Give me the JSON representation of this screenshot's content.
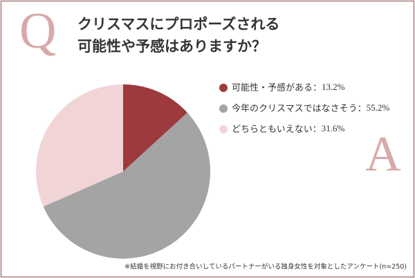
{
  "chart_data": {
    "type": "pie",
    "mark_q": "Q",
    "title_lines": [
      "クリスマスにプロポーズされる",
      "可能性や予感はありますか？"
    ],
    "mark_a": "A",
    "categories": [
      "可能性・予感がある",
      "今年のクリスマスではなさそう",
      "どちらともいえない"
    ],
    "label_separator": "：",
    "values": [
      13.2,
      55.2,
      31.6
    ],
    "value_labels": [
      "13.2%",
      "55.2%",
      "31.6%"
    ],
    "colors": [
      "#9c3a3e",
      "#a4a4a4",
      "#f1d5d6"
    ],
    "footnote": "※結婚を視野にお付き合いしているパートナーがいる独身女性を対象としたアンケート(n=250)"
  }
}
